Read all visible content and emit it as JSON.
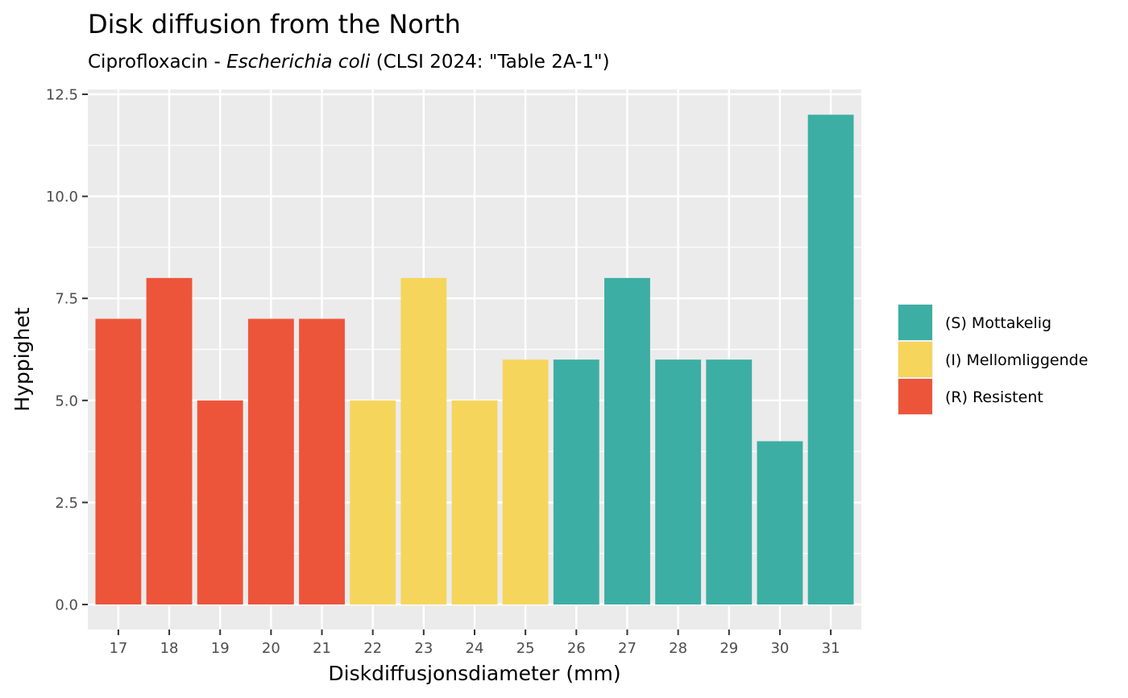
{
  "chart_data": {
    "type": "bar",
    "title": "Disk diffusion from the North",
    "subtitle": {
      "prefix": "Ciprofloxacin - ",
      "organism": "Escherichia coli",
      "suffix": " (CLSI 2024: \"Table 2A-1\")"
    },
    "xlabel": "Diskdiffusjonsdiameter (mm)",
    "ylabel": "Hyppighet",
    "categories": [
      "17",
      "18",
      "19",
      "20",
      "21",
      "22",
      "23",
      "24",
      "25",
      "26",
      "27",
      "28",
      "29",
      "30",
      "31"
    ],
    "values": [
      7,
      8,
      5,
      7,
      7,
      5,
      8,
      5,
      6,
      6,
      8,
      6,
      6,
      4,
      12
    ],
    "interpretation": [
      "R",
      "R",
      "R",
      "R",
      "R",
      "I",
      "I",
      "I",
      "I",
      "S",
      "S",
      "S",
      "S",
      "S",
      "S"
    ],
    "ylim": [
      0,
      12.5
    ],
    "yticks": [
      0.0,
      2.5,
      5.0,
      7.5,
      10.0,
      12.5
    ],
    "ytick_labels": [
      "0.0",
      "2.5",
      "5.0",
      "7.5",
      "10.0",
      "12.5"
    ],
    "grid": true,
    "legend_position": "right",
    "legend": [
      {
        "key": "S",
        "label": "(S) Mottakelig",
        "color": "#3CAEA3"
      },
      {
        "key": "I",
        "label": "(I) Mellomliggende",
        "color": "#F6D55C"
      },
      {
        "key": "R",
        "label": "(R) Resistent",
        "color": "#ED553B"
      }
    ],
    "panel_color": "#EBEBEB",
    "grid_color": "#FFFFFF"
  }
}
